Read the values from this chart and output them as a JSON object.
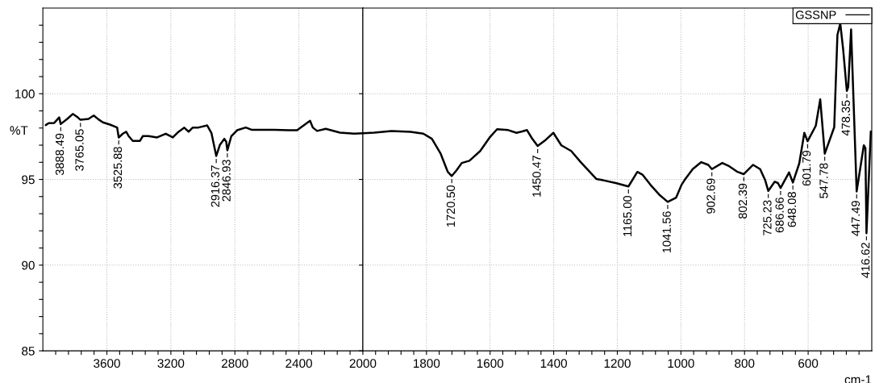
{
  "chart_data": [
    {
      "type": "line",
      "ylabel": "%T",
      "xlim": [
        4000,
        2000
      ],
      "ylim": [
        85,
        105
      ],
      "xticks": [
        {
          "value": 3920,
          "label": null
        },
        {
          "value": 3840,
          "label": null
        },
        {
          "value": 3760,
          "label": null
        },
        {
          "value": 3680,
          "label": null
        },
        3600,
        {
          "value": 3520,
          "label": null
        },
        {
          "value": 3440,
          "label": null
        },
        {
          "value": 3360,
          "label": null
        },
        {
          "value": 3280,
          "label": null
        },
        3200,
        {
          "value": 3120,
          "label": null
        },
        {
          "value": 3040,
          "label": null
        },
        {
          "value": 2960,
          "label": null
        },
        {
          "value": 2880,
          "label": null
        },
        2800,
        {
          "value": 2720,
          "label": null
        },
        {
          "value": 2640,
          "label": null
        },
        {
          "value": 2560,
          "label": null
        },
        {
          "value": 2480,
          "label": null
        },
        2400,
        {
          "value": 2320,
          "label": null
        },
        {
          "value": 2240,
          "label": null
        },
        {
          "value": 2160,
          "label": null
        },
        {
          "value": 2080,
          "label": null
        }
      ],
      "yticks": [
        85,
        {
          "value": 86,
          "label": null
        },
        {
          "value": 87,
          "label": null
        },
        {
          "value": 88,
          "label": null
        },
        {
          "value": 89,
          "label": null
        },
        90,
        {
          "value": 91,
          "label": null
        },
        {
          "value": 92,
          "label": null
        },
        {
          "value": 93,
          "label": null
        },
        {
          "value": 94,
          "label": null
        },
        95,
        {
          "value": 96,
          "label": null
        },
        {
          "value": 97,
          "label": null
        },
        {
          "value": 98,
          "label": null
        },
        {
          "value": 99,
          "label": null
        },
        100,
        {
          "value": 101,
          "label": null
        },
        {
          "value": 102,
          "label": null
        },
        {
          "value": 103,
          "label": null
        },
        {
          "value": 104,
          "label": null
        }
      ],
      "grid": true,
      "marker": "none",
      "line_style": "solid",
      "series": [
        {
          "color": "#000000",
          "x": [
            3982,
            3964,
            3929,
            3898,
            3888.49,
            3848,
            3813,
            3782,
            3765.05,
            3715,
            3682,
            3652,
            3625,
            3581,
            3536,
            3525.88,
            3500,
            3479,
            3464,
            3438,
            3393,
            3375,
            3340,
            3286,
            3232,
            3188,
            3152,
            3116,
            3089,
            3063,
            3027,
            2973,
            2946,
            2916.37,
            2893,
            2866,
            2854,
            2846.93,
            2822,
            2786,
            2732,
            2696,
            2643,
            2554,
            2464,
            2411,
            2375,
            2330,
            2313,
            2286,
            2232,
            2143,
            2054,
            2000
          ],
          "values": [
            98.17,
            98.28,
            98.3,
            98.62,
            98.23,
            98.53,
            98.82,
            98.62,
            98.48,
            98.53,
            98.73,
            98.5,
            98.33,
            98.2,
            98.03,
            97.45,
            97.67,
            97.78,
            97.53,
            97.25,
            97.25,
            97.53,
            97.53,
            97.45,
            97.67,
            97.45,
            97.78,
            98.02,
            97.78,
            98.03,
            98.03,
            98.15,
            97.7,
            96.37,
            97.03,
            97.37,
            97.2,
            96.7,
            97.53,
            97.87,
            98.03,
            97.9,
            97.9,
            97.9,
            97.87,
            97.87,
            98.12,
            98.42,
            98.03,
            97.83,
            97.95,
            97.73,
            97.67,
            97.7
          ]
        }
      ],
      "annotations": [
        {
          "text": "3888.49",
          "x": 3888.49,
          "y": 98.23
        },
        {
          "text": "3765.05",
          "x": 3765.05,
          "y": 98.48
        },
        {
          "text": "3525.88",
          "x": 3525.88,
          "y": 97.45
        },
        {
          "text": "2916.37",
          "x": 2916.37,
          "y": 96.37
        },
        {
          "text": "2846.93",
          "x": 2846.93,
          "y": 96.7
        }
      ]
    },
    {
      "type": "line",
      "xlabel": "cm-1",
      "tick_labels": "x",
      "xlim": [
        2000,
        400
      ],
      "ylim": [
        85,
        105
      ],
      "xticks": [
        2000,
        {
          "value": 1960,
          "label": null
        },
        {
          "value": 1920,
          "label": null
        },
        {
          "value": 1880,
          "label": null
        },
        {
          "value": 1840,
          "label": null
        },
        1800,
        {
          "value": 1760,
          "label": null
        },
        {
          "value": 1720,
          "label": null
        },
        {
          "value": 1680,
          "label": null
        },
        {
          "value": 1640,
          "label": null
        },
        1600,
        {
          "value": 1560,
          "label": null
        },
        {
          "value": 1520,
          "label": null
        },
        {
          "value": 1480,
          "label": null
        },
        {
          "value": 1440,
          "label": null
        },
        1400,
        {
          "value": 1360,
          "label": null
        },
        {
          "value": 1320,
          "label": null
        },
        {
          "value": 1280,
          "label": null
        },
        {
          "value": 1240,
          "label": null
        },
        1200,
        {
          "value": 1160,
          "label": null
        },
        {
          "value": 1120,
          "label": null
        },
        {
          "value": 1080,
          "label": null
        },
        {
          "value": 1040,
          "label": null
        },
        1000,
        {
          "value": 960,
          "label": null
        },
        {
          "value": 920,
          "label": null
        },
        {
          "value": 880,
          "label": null
        },
        {
          "value": 840,
          "label": null
        },
        800,
        {
          "value": 760,
          "label": null
        },
        {
          "value": 720,
          "label": null
        },
        {
          "value": 680,
          "label": null
        },
        {
          "value": 640,
          "label": null
        },
        600,
        {
          "value": 560,
          "label": null
        },
        {
          "value": 520,
          "label": null
        },
        {
          "value": 480,
          "label": null
        },
        {
          "value": 440,
          "label": null
        }
      ],
      "yticks": [
        85,
        90,
        95,
        100
      ],
      "grid": true,
      "legend": "top right",
      "marker": "none",
      "line_style": "solid",
      "series": [
        {
          "name": "GSSNP",
          "color": "#000000",
          "x": [
            2000,
            1964,
            1910,
            1850,
            1810,
            1783,
            1756,
            1733,
            1720.5,
            1706,
            1689,
            1665,
            1631,
            1600,
            1578,
            1543,
            1517,
            1499,
            1484,
            1468,
            1450.47,
            1425,
            1401,
            1376,
            1345,
            1315,
            1266,
            1244,
            1205,
            1165,
            1137,
            1121,
            1095,
            1068,
            1041.56,
            1015,
            998,
            989,
            963,
            936,
            914,
            902.69,
            870,
            848,
            822,
            802.39,
            773,
            751,
            735,
            725.23,
            705,
            695,
            686.66,
            660,
            648.08,
            628,
            612,
            601.79,
            576,
            562,
            547.78,
            518,
            508,
            499,
            490,
            478.35,
            474,
            465,
            447.49,
            425,
            420,
            416.62,
            403
          ],
          "values": [
            97.7,
            97.73,
            97.83,
            97.78,
            97.67,
            97.37,
            96.53,
            95.44,
            95.2,
            95.52,
            95.96,
            96.09,
            96.66,
            97.48,
            97.93,
            97.88,
            97.72,
            97.8,
            97.88,
            97.39,
            96.95,
            97.31,
            97.72,
            96.99,
            96.66,
            96.01,
            95.03,
            94.95,
            94.79,
            94.59,
            95.44,
            95.28,
            94.67,
            94.11,
            93.69,
            93.94,
            94.69,
            94.95,
            95.6,
            96.01,
            95.85,
            95.6,
            95.96,
            95.77,
            95.44,
            95.31,
            95.85,
            95.6,
            94.95,
            94.33,
            94.87,
            94.79,
            94.5,
            95.41,
            94.82,
            95.93,
            97.72,
            97.23,
            98.13,
            99.67,
            96.5,
            98.05,
            103.42,
            104.1,
            102.6,
            100.16,
            100.4,
            103.75,
            94.3,
            96.99,
            96.83,
            91.86,
            97.8
          ]
        }
      ],
      "annotations": [
        {
          "text": "1720.50",
          "x": 1720.5,
          "y": 95.2
        },
        {
          "text": "1450.47",
          "x": 1450.47,
          "y": 96.95
        },
        {
          "text": "1165.00",
          "x": 1165,
          "y": 94.59
        },
        {
          "text": "1041.56",
          "x": 1041.56,
          "y": 93.69
        },
        {
          "text": "902.69",
          "x": 902.69,
          "y": 95.6
        },
        {
          "text": "802.39",
          "x": 802.39,
          "y": 95.31
        },
        {
          "text": "725.23",
          "x": 725.23,
          "y": 94.33
        },
        {
          "text": "686.66",
          "x": 686.66,
          "y": 94.5
        },
        {
          "text": "648.08",
          "x": 648.08,
          "y": 94.82
        },
        {
          "text": "601.79",
          "x": 601.79,
          "y": 97.23
        },
        {
          "text": "547.78",
          "x": 547.78,
          "y": 96.5
        },
        {
          "text": "478.35",
          "x": 478.35,
          "y": 100.16
        },
        {
          "text": "447.49",
          "x": 447.49,
          "y": 94.3
        },
        {
          "text": "416.62",
          "x": 416.62,
          "y": 91.86
        }
      ]
    }
  ]
}
